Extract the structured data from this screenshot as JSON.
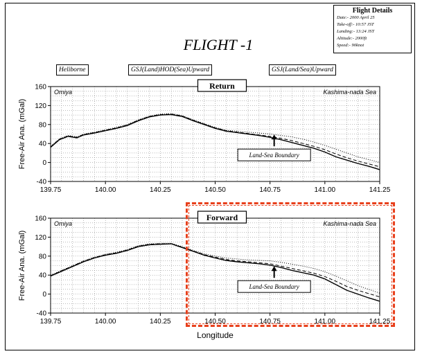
{
  "title": "FLIGHT -1",
  "flight_details": {
    "heading": "Flight Details",
    "lines": [
      "Date:- 2000 April 25",
      "Take-off:- 10:57 JST",
      "Landing:- 13:24 JST",
      "Altitude:- 2000ft",
      "Speed:- 90knot"
    ]
  },
  "legend": [
    {
      "label": "Heliborne",
      "style": "solid"
    },
    {
      "label": "GSJ(Land)HOD(Sea)Upward",
      "style": "dashed"
    },
    {
      "label": "GSJ(Land/Sea)Upward",
      "style": "dotted"
    }
  ],
  "colors": {
    "highlight": "#e8401c",
    "series": "#000000"
  },
  "chart_data": [
    {
      "type": "line",
      "title": "Return",
      "xlabel": "",
      "ylabel": "Free-Air Ana. (mGal)",
      "xlim": [
        139.75,
        141.25
      ],
      "ylim": [
        -40,
        160
      ],
      "xticks": [
        "139.75",
        "140.00",
        "140.25",
        "140.50",
        "140.75",
        "141.00",
        "141.25"
      ],
      "yticks": [
        "-40",
        "0",
        "40",
        "80",
        "120",
        "160"
      ],
      "grid": true,
      "annotations": {
        "left": "Omiya",
        "right": "Kashima-nada Sea",
        "boundary": "Land-Sea Boundary",
        "boundary_x": 140.75
      },
      "series": [
        {
          "name": "Heliborne",
          "style": "solid",
          "x": [
            139.75,
            139.79,
            139.83,
            139.87,
            139.9,
            139.95,
            140.0,
            140.05,
            140.1,
            140.15,
            140.2,
            140.25,
            140.3,
            140.35,
            140.4,
            140.45,
            140.5,
            140.55,
            140.6,
            140.65,
            140.7,
            140.75,
            140.8,
            140.85,
            140.9,
            140.95,
            141.0,
            141.05,
            141.1,
            141.15,
            141.2,
            141.25
          ],
          "y": [
            32,
            48,
            55,
            52,
            58,
            62,
            67,
            72,
            78,
            88,
            96,
            100,
            101,
            97,
            88,
            80,
            72,
            66,
            63,
            60,
            57,
            53,
            48,
            42,
            36,
            30,
            22,
            12,
            5,
            -2,
            -8,
            -15
          ]
        },
        {
          "name": "GSJ(Land)HOD(Sea)Upward",
          "style": "dashed",
          "x": [
            139.75,
            139.79,
            139.83,
            139.87,
            139.9,
            139.95,
            140.0,
            140.05,
            140.1,
            140.15,
            140.2,
            140.25,
            140.3,
            140.35,
            140.4,
            140.45,
            140.5,
            140.55,
            140.6,
            140.65,
            140.7,
            140.75,
            140.8,
            140.85,
            140.9,
            140.95,
            141.0,
            141.05,
            141.1,
            141.15,
            141.2,
            141.25
          ],
          "y": [
            33,
            49,
            56,
            53,
            59,
            63,
            68,
            73,
            79,
            89,
            97,
            101,
            102,
            98,
            89,
            81,
            73,
            67,
            64,
            61,
            58,
            55,
            51,
            46,
            40,
            34,
            27,
            18,
            10,
            3,
            -3,
            -9
          ]
        },
        {
          "name": "GSJ(Land/Sea)Upward",
          "style": "dotted",
          "x": [
            139.75,
            139.79,
            139.83,
            139.87,
            139.9,
            139.95,
            140.0,
            140.05,
            140.1,
            140.15,
            140.2,
            140.25,
            140.3,
            140.35,
            140.4,
            140.45,
            140.5,
            140.55,
            140.6,
            140.65,
            140.7,
            140.75,
            140.8,
            140.85,
            140.9,
            140.95,
            141.0,
            141.05,
            141.1,
            141.15,
            141.2,
            141.25
          ],
          "y": [
            34,
            50,
            57,
            54,
            60,
            64,
            69,
            74,
            80,
            90,
            98,
            102,
            103,
            99,
            90,
            82,
            74,
            68,
            66,
            64,
            62,
            60,
            57,
            54,
            49,
            43,
            36,
            28,
            20,
            12,
            6,
            0
          ]
        }
      ]
    },
    {
      "type": "line",
      "title": "Forward",
      "xlabel": "Longitude",
      "ylabel": "Free-Air Ana. (mGal)",
      "xlim": [
        139.75,
        141.25
      ],
      "ylim": [
        -40,
        160
      ],
      "xticks": [
        "139.75",
        "140.00",
        "140.25",
        "140.50",
        "140.75",
        "141.00",
        "141.25"
      ],
      "yticks": [
        "-40",
        "0",
        "40",
        "80",
        "120",
        "160"
      ],
      "grid": true,
      "annotations": {
        "left": "Omiya",
        "right": "Kashima-nada Sea",
        "boundary": "Land-Sea Boundary",
        "boundary_x": 140.75
      },
      "series": [
        {
          "name": "Heliborne",
          "style": "solid",
          "x": [
            139.75,
            139.8,
            139.85,
            139.9,
            139.95,
            140.0,
            140.05,
            140.1,
            140.15,
            140.2,
            140.25,
            140.3,
            140.35,
            140.4,
            140.45,
            140.5,
            140.55,
            140.6,
            140.65,
            140.7,
            140.75,
            140.8,
            140.85,
            140.9,
            140.95,
            141.0,
            141.05,
            141.1,
            141.15,
            141.2,
            141.25
          ],
          "y": [
            38,
            48,
            58,
            68,
            76,
            82,
            86,
            92,
            100,
            104,
            105,
            106,
            98,
            90,
            82,
            76,
            71,
            68,
            66,
            64,
            61,
            56,
            50,
            45,
            40,
            32,
            20,
            8,
            0,
            -8,
            -15
          ]
        },
        {
          "name": "GSJ(Land)HOD(Sea)Upward",
          "style": "dashed",
          "x": [
            139.75,
            139.8,
            139.85,
            139.9,
            139.95,
            140.0,
            140.05,
            140.1,
            140.15,
            140.2,
            140.25,
            140.3,
            140.35,
            140.4,
            140.45,
            140.5,
            140.55,
            140.6,
            140.65,
            140.7,
            140.75,
            140.8,
            140.85,
            140.9,
            140.95,
            141.0,
            141.05,
            141.1,
            141.15,
            141.2,
            141.25
          ],
          "y": [
            39,
            49,
            59,
            69,
            77,
            83,
            87,
            93,
            101,
            105,
            106,
            106,
            99,
            91,
            83,
            78,
            73,
            70,
            68,
            66,
            64,
            59,
            54,
            49,
            44,
            37,
            27,
            16,
            8,
            1,
            -6
          ]
        },
        {
          "name": "GSJ(Land/Sea)Upward",
          "style": "dotted",
          "x": [
            139.75,
            139.8,
            139.85,
            139.9,
            139.95,
            140.0,
            140.05,
            140.1,
            140.15,
            140.2,
            140.25,
            140.3,
            140.35,
            140.4,
            140.45,
            140.5,
            140.55,
            140.6,
            140.65,
            140.7,
            140.75,
            140.8,
            140.85,
            140.9,
            140.95,
            141.0,
            141.05,
            141.1,
            141.15,
            141.2,
            141.25
          ],
          "y": [
            40,
            50,
            60,
            70,
            78,
            84,
            88,
            94,
            102,
            106,
            107,
            107,
            100,
            92,
            85,
            80,
            76,
            74,
            72,
            71,
            70,
            67,
            63,
            59,
            54,
            47,
            38,
            28,
            18,
            10,
            2
          ]
        }
      ]
    }
  ]
}
